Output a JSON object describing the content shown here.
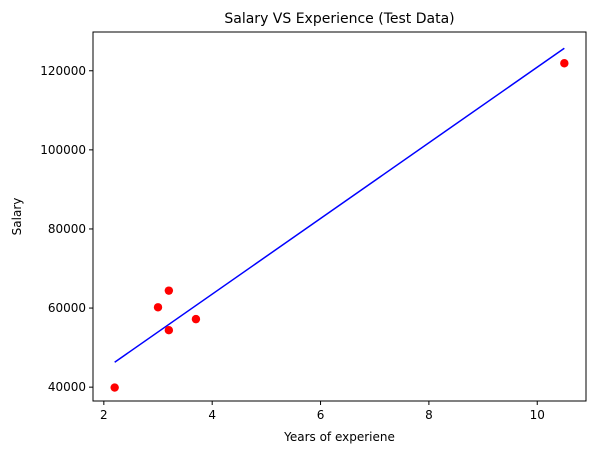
{
  "chart_data": {
    "type": "scatter",
    "title": "Salary VS Experience (Test Data)",
    "xlabel": "Years of experiene",
    "ylabel": "Salary",
    "xlim": [
      1.8,
      10.9
    ],
    "ylim": [
      36500,
      129800
    ],
    "x_ticks": [
      2,
      4,
      6,
      8,
      10
    ],
    "y_ticks": [
      40000,
      60000,
      80000,
      100000,
      120000
    ],
    "grid": false,
    "series": [
      {
        "type": "scatter",
        "color": "#ff0000",
        "points": [
          {
            "x": 2.2,
            "y": 39900
          },
          {
            "x": 3.0,
            "y": 60200
          },
          {
            "x": 3.2,
            "y": 64400
          },
          {
            "x": 3.2,
            "y": 54400
          },
          {
            "x": 3.7,
            "y": 57200
          },
          {
            "x": 10.5,
            "y": 121900
          }
        ]
      },
      {
        "type": "line",
        "color": "#0000ff",
        "points": [
          {
            "x": 2.2,
            "y": 46300
          },
          {
            "x": 10.5,
            "y": 125700
          }
        ]
      }
    ]
  }
}
